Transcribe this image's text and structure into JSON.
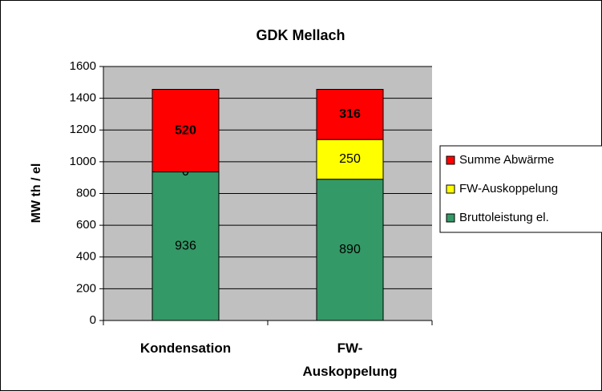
{
  "chart_data": {
    "type": "stacked_bar",
    "title": "GDK Mellach",
    "ylabel": "MW th / el",
    "categories": [
      "Kondensation",
      "FW-Auskoppelung"
    ],
    "series": [
      {
        "name": "Bruttoleistung el.",
        "color": "#339966",
        "values": [
          936,
          890
        ]
      },
      {
        "name": "FW-Auskoppelung",
        "color": "#ffff00",
        "values": [
          0,
          250
        ]
      },
      {
        "name": "Summe Abwärme",
        "color": "#ff0000",
        "values": [
          520,
          316
        ]
      }
    ],
    "ylim": [
      0,
      1600
    ],
    "yticks": [
      0,
      200,
      400,
      600,
      800,
      1000,
      1200,
      1400,
      1600
    ],
    "grid": true,
    "legend": "right"
  }
}
